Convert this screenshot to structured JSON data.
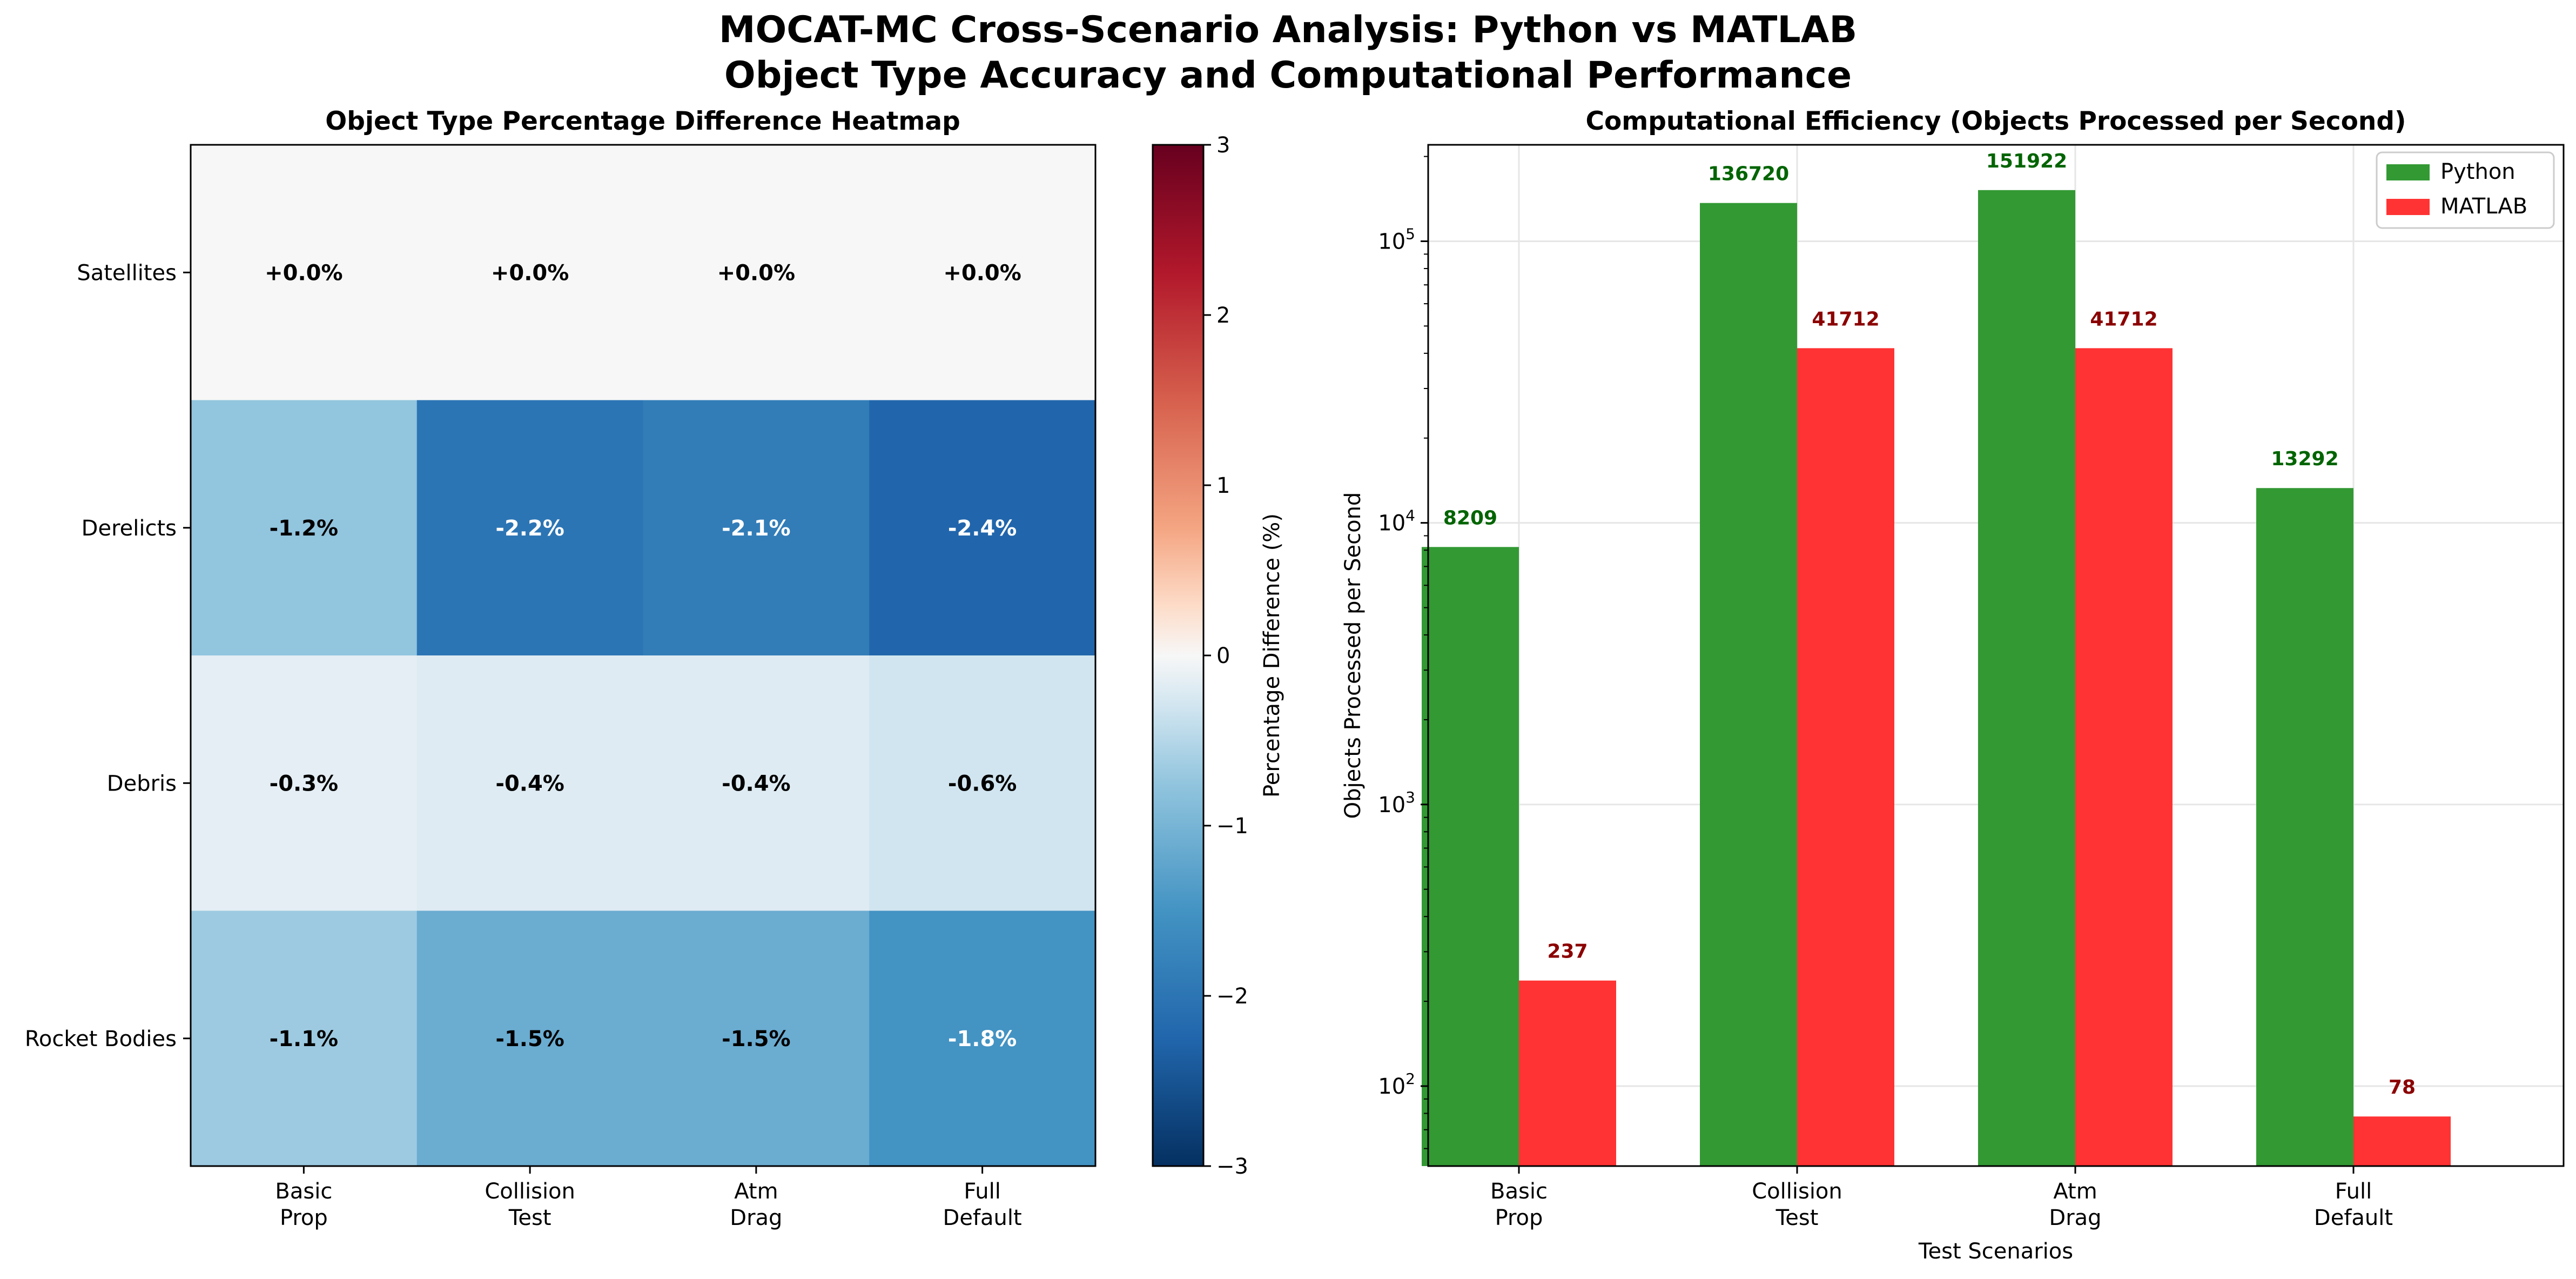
{
  "figure": {
    "title_line1": "MOCAT-MC Cross-Scenario Analysis: Python vs MATLAB",
    "title_line2": "Object Type Accuracy and Computational Performance"
  },
  "chart_data": [
    {
      "type": "heatmap",
      "title": "Object Type Percentage Difference Heatmap",
      "x_categories": [
        "Basic\nProp",
        "Collision\nTest",
        "Atm\nDrag",
        "Full\nDefault"
      ],
      "y_categories": [
        "Satellites",
        "Derelicts",
        "Debris",
        "Rocket Bodies"
      ],
      "values": [
        [
          0.0,
          0.0,
          0.0,
          0.0
        ],
        [
          -1.2,
          -2.2,
          -2.1,
          -2.4
        ],
        [
          -0.3,
          -0.4,
          -0.4,
          -0.6
        ],
        [
          -1.1,
          -1.5,
          -1.5,
          -1.8
        ]
      ],
      "cell_labels": [
        [
          "+0.0%",
          "+0.0%",
          "+0.0%",
          "+0.0%"
        ],
        [
          "-1.2%",
          "-2.2%",
          "-2.1%",
          "-2.4%"
        ],
        [
          "-0.3%",
          "-0.4%",
          "-0.4%",
          "-0.6%"
        ],
        [
          "-1.1%",
          "-1.5%",
          "-1.5%",
          "-1.8%"
        ]
      ],
      "colormap": "RdBu_r",
      "colorbar": {
        "label": "Percentage Difference (%)",
        "range": [
          -3,
          3
        ],
        "ticks": [
          3,
          2,
          1,
          0,
          -1,
          -2,
          -3
        ],
        "tick_labels": [
          "3",
          "2",
          "1",
          "0",
          "−1",
          "−2",
          "−3"
        ]
      }
    },
    {
      "type": "bar",
      "title": "Computational Efficiency (Objects Processed per Second)",
      "xlabel": "Test Scenarios",
      "ylabel": "Objects Processed per Second",
      "yscale": "log",
      "ylim": [
        52,
        220000
      ],
      "y_ticks": [
        100,
        1000,
        10000,
        100000
      ],
      "y_tick_bases": [
        "10",
        "10",
        "10",
        "10"
      ],
      "y_tick_exponents": [
        "2",
        "3",
        "4",
        "5"
      ],
      "categories": [
        "Basic\nProp",
        "Collision\nTest",
        "Atm\nDrag",
        "Full\nDefault"
      ],
      "series": [
        {
          "name": "Python",
          "color": "#339933",
          "label_color": "#006400",
          "values": [
            8209,
            136720,
            151922,
            13292
          ],
          "labels": [
            "8209",
            "136720",
            "151922",
            "13292"
          ]
        },
        {
          "name": "MATLAB",
          "color": "#ff3333",
          "label_color": "#8b0000",
          "values": [
            237,
            41712,
            41712,
            78
          ],
          "labels": [
            "237",
            "41712",
            "41712",
            "78"
          ]
        }
      ],
      "grid": true,
      "legend": "top-right"
    }
  ]
}
